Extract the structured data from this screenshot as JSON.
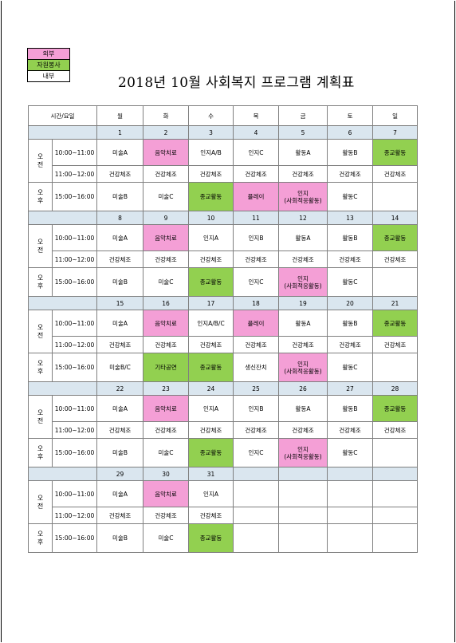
{
  "legend": [
    {
      "label": "외부",
      "color": "#f49fd6"
    },
    {
      "label": "자원봉사",
      "color": "#92d050"
    },
    {
      "label": "내부",
      "color": "#ffffff"
    }
  ],
  "title": "2018년 10월 사회복지 프로그램 계획표",
  "header": {
    "time_day": "시간/요일",
    "days": [
      "월",
      "화",
      "수",
      "목",
      "금",
      "토",
      "일"
    ]
  },
  "segments": {
    "am": "오\n전",
    "pm": "오\n후"
  },
  "times": {
    "t1": "10:00~11:00",
    "t2": "11:00~12:00",
    "t3": "15:00~16:00"
  },
  "colors": {
    "external": "#f49fd6",
    "volunteer": "#92d050",
    "date_row": "#dae6ef"
  },
  "weeks": [
    {
      "dates": [
        "1",
        "2",
        "3",
        "4",
        "5",
        "6",
        "7"
      ],
      "r1": [
        [
          "미술A",
          ""
        ],
        [
          "음악치료",
          "pink"
        ],
        [
          "인지A/B",
          ""
        ],
        [
          "인지C",
          ""
        ],
        [
          "활동A",
          ""
        ],
        [
          "활동B",
          ""
        ],
        [
          "종교활동",
          "green"
        ]
      ],
      "r2": [
        [
          "건강체조",
          ""
        ],
        [
          "건강체조",
          ""
        ],
        [
          "건강체조",
          ""
        ],
        [
          "건강체조",
          ""
        ],
        [
          "건강체조",
          ""
        ],
        [
          "건강체조",
          ""
        ],
        [
          "건강체조",
          ""
        ]
      ],
      "r3": [
        [
          "미술B",
          ""
        ],
        [
          "미술C",
          ""
        ],
        [
          "종교활동",
          "green"
        ],
        [
          "플레이",
          "pink"
        ],
        [
          "인지\n(사회적응활동)",
          "pink"
        ],
        [
          "활동C",
          ""
        ],
        [
          "",
          ""
        ]
      ]
    },
    {
      "dates": [
        "8",
        "9",
        "10",
        "11",
        "12",
        "13",
        "14"
      ],
      "r1": [
        [
          "미술A",
          ""
        ],
        [
          "음악치료",
          "pink"
        ],
        [
          "인지A",
          ""
        ],
        [
          "인지B",
          ""
        ],
        [
          "활동A",
          ""
        ],
        [
          "활동B",
          ""
        ],
        [
          "종교활동",
          "green"
        ]
      ],
      "r2": [
        [
          "건강체조",
          ""
        ],
        [
          "건강체조",
          ""
        ],
        [
          "건강체조",
          ""
        ],
        [
          "건강체조",
          ""
        ],
        [
          "건강체조",
          ""
        ],
        [
          "건강체조",
          ""
        ],
        [
          "건강체조",
          ""
        ]
      ],
      "r3": [
        [
          "미술B",
          ""
        ],
        [
          "미술C",
          ""
        ],
        [
          "종교활동",
          "green"
        ],
        [
          "인지C",
          ""
        ],
        [
          "인지\n(사회적응활동)",
          "pink"
        ],
        [
          "활동C",
          ""
        ],
        [
          "",
          ""
        ]
      ]
    },
    {
      "dates": [
        "15",
        "16",
        "17",
        "18",
        "19",
        "20",
        "21"
      ],
      "r1": [
        [
          "미술A",
          ""
        ],
        [
          "음악치료",
          "pink"
        ],
        [
          "인지A/B/C",
          ""
        ],
        [
          "플레이",
          "pink"
        ],
        [
          "활동A",
          ""
        ],
        [
          "활동B",
          ""
        ],
        [
          "종교활동",
          "green"
        ]
      ],
      "r2": [
        [
          "건강체조",
          ""
        ],
        [
          "건강체조",
          ""
        ],
        [
          "건강체조",
          ""
        ],
        [
          "건강체조",
          ""
        ],
        [
          "건강체조",
          ""
        ],
        [
          "건강체조",
          ""
        ],
        [
          "건강체조",
          ""
        ]
      ],
      "r3": [
        [
          "미술B/C",
          ""
        ],
        [
          "기타공연",
          "green"
        ],
        [
          "종교활동",
          "green"
        ],
        [
          "생신잔치",
          ""
        ],
        [
          "인지\n(사회적응활동)",
          "pink"
        ],
        [
          "활동C",
          ""
        ],
        [
          "",
          ""
        ]
      ]
    },
    {
      "dates": [
        "22",
        "23",
        "24",
        "25",
        "26",
        "27",
        "28"
      ],
      "r1": [
        [
          "미술A",
          ""
        ],
        [
          "음악치료",
          "pink"
        ],
        [
          "인지A",
          ""
        ],
        [
          "인지B",
          ""
        ],
        [
          "활동A",
          ""
        ],
        [
          "활동B",
          ""
        ],
        [
          "종교활동",
          "green"
        ]
      ],
      "r2": [
        [
          "건강체조",
          ""
        ],
        [
          "건강체조",
          ""
        ],
        [
          "건강체조",
          ""
        ],
        [
          "건강체조",
          ""
        ],
        [
          "건강체조",
          ""
        ],
        [
          "건강체조",
          ""
        ],
        [
          "건강체조",
          ""
        ]
      ],
      "r3": [
        [
          "미술B",
          ""
        ],
        [
          "미술C",
          ""
        ],
        [
          "종교활동",
          "green"
        ],
        [
          "인지C",
          ""
        ],
        [
          "인지\n(사회적응활동)",
          "pink"
        ],
        [
          "활동C",
          ""
        ],
        [
          "",
          ""
        ]
      ]
    },
    {
      "dates": [
        "29",
        "30",
        "31",
        "",
        "",
        "",
        ""
      ],
      "r1": [
        [
          "미술A",
          ""
        ],
        [
          "음악치료",
          "pink"
        ],
        [
          "인지A",
          ""
        ],
        [
          "",
          ""
        ],
        [
          "",
          ""
        ],
        [
          "",
          ""
        ],
        [
          "",
          ""
        ]
      ],
      "r2": [
        [
          "건강체조",
          ""
        ],
        [
          "건강체조",
          ""
        ],
        [
          "건강체조",
          ""
        ],
        [
          "",
          ""
        ],
        [
          "",
          ""
        ],
        [
          "",
          ""
        ],
        [
          "",
          ""
        ]
      ],
      "r3": [
        [
          "미술B",
          ""
        ],
        [
          "미술C",
          ""
        ],
        [
          "종교활동",
          "green"
        ],
        [
          "",
          ""
        ],
        [
          "",
          ""
        ],
        [
          "",
          ""
        ],
        [
          "",
          ""
        ]
      ]
    }
  ]
}
